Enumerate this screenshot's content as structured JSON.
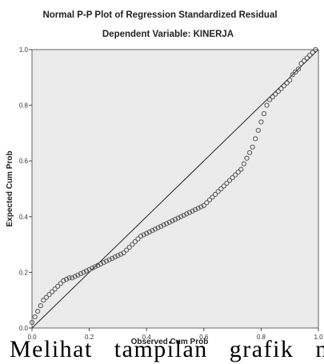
{
  "chart_data": {
    "type": "scatter",
    "title": "Normal P-P Plot of Regression Standardized Residual",
    "subtitle": "Dependent Variable: KINERJA",
    "xlabel": "Observed Cum Prob",
    "ylabel": "Expected Cum Prob",
    "xlim": [
      0,
      1
    ],
    "ylim": [
      0,
      1
    ],
    "xticks": [
      "0.0",
      "0.2",
      "0.4",
      "0.6",
      "0.8",
      "1.0"
    ],
    "yticks": [
      "0.0",
      "0.2",
      "0.4",
      "0.6",
      "0.8",
      "1.0"
    ],
    "reference_line": [
      [
        0,
        0
      ],
      [
        1,
        1
      ]
    ],
    "grid": false,
    "plot_background": "#ebebeb",
    "point_color": "#555555",
    "points": [
      [
        0.0,
        0.02
      ],
      [
        0.01,
        0.04
      ],
      [
        0.02,
        0.06
      ],
      [
        0.03,
        0.08
      ],
      [
        0.04,
        0.1
      ],
      [
        0.05,
        0.11
      ],
      [
        0.06,
        0.12
      ],
      [
        0.07,
        0.13
      ],
      [
        0.08,
        0.14
      ],
      [
        0.09,
        0.15
      ],
      [
        0.1,
        0.16
      ],
      [
        0.11,
        0.17
      ],
      [
        0.12,
        0.175
      ],
      [
        0.13,
        0.18
      ],
      [
        0.14,
        0.18
      ],
      [
        0.15,
        0.185
      ],
      [
        0.16,
        0.19
      ],
      [
        0.17,
        0.195
      ],
      [
        0.18,
        0.2
      ],
      [
        0.19,
        0.205
      ],
      [
        0.2,
        0.21
      ],
      [
        0.21,
        0.215
      ],
      [
        0.22,
        0.22
      ],
      [
        0.23,
        0.225
      ],
      [
        0.24,
        0.23
      ],
      [
        0.25,
        0.235
      ],
      [
        0.26,
        0.24
      ],
      [
        0.27,
        0.245
      ],
      [
        0.28,
        0.25
      ],
      [
        0.29,
        0.255
      ],
      [
        0.3,
        0.26
      ],
      [
        0.31,
        0.265
      ],
      [
        0.32,
        0.27
      ],
      [
        0.33,
        0.28
      ],
      [
        0.34,
        0.29
      ],
      [
        0.35,
        0.3
      ],
      [
        0.36,
        0.31
      ],
      [
        0.37,
        0.32
      ],
      [
        0.38,
        0.33
      ],
      [
        0.39,
        0.335
      ],
      [
        0.4,
        0.34
      ],
      [
        0.41,
        0.345
      ],
      [
        0.42,
        0.35
      ],
      [
        0.43,
        0.355
      ],
      [
        0.44,
        0.36
      ],
      [
        0.45,
        0.365
      ],
      [
        0.46,
        0.37
      ],
      [
        0.47,
        0.375
      ],
      [
        0.48,
        0.38
      ],
      [
        0.49,
        0.385
      ],
      [
        0.5,
        0.39
      ],
      [
        0.51,
        0.395
      ],
      [
        0.52,
        0.4
      ],
      [
        0.53,
        0.405
      ],
      [
        0.54,
        0.41
      ],
      [
        0.55,
        0.415
      ],
      [
        0.56,
        0.42
      ],
      [
        0.57,
        0.425
      ],
      [
        0.58,
        0.43
      ],
      [
        0.59,
        0.435
      ],
      [
        0.6,
        0.44
      ],
      [
        0.61,
        0.45
      ],
      [
        0.62,
        0.46
      ],
      [
        0.63,
        0.47
      ],
      [
        0.64,
        0.48
      ],
      [
        0.65,
        0.49
      ],
      [
        0.66,
        0.5
      ],
      [
        0.67,
        0.51
      ],
      [
        0.68,
        0.52
      ],
      [
        0.69,
        0.53
      ],
      [
        0.7,
        0.54
      ],
      [
        0.71,
        0.55
      ],
      [
        0.72,
        0.56
      ],
      [
        0.73,
        0.57
      ],
      [
        0.74,
        0.59
      ],
      [
        0.75,
        0.61
      ],
      [
        0.76,
        0.63
      ],
      [
        0.77,
        0.65
      ],
      [
        0.78,
        0.68
      ],
      [
        0.79,
        0.71
      ],
      [
        0.8,
        0.74
      ],
      [
        0.81,
        0.77
      ],
      [
        0.82,
        0.8
      ],
      [
        0.83,
        0.82
      ],
      [
        0.84,
        0.83
      ],
      [
        0.85,
        0.84
      ],
      [
        0.86,
        0.85
      ],
      [
        0.87,
        0.86
      ],
      [
        0.88,
        0.87
      ],
      [
        0.89,
        0.88
      ],
      [
        0.9,
        0.89
      ],
      [
        0.91,
        0.91
      ],
      [
        0.92,
        0.92
      ],
      [
        0.93,
        0.93
      ],
      [
        0.94,
        0.95
      ],
      [
        0.95,
        0.96
      ],
      [
        0.96,
        0.97
      ],
      [
        0.97,
        0.98
      ],
      [
        0.98,
        0.99
      ],
      [
        0.99,
        1.0
      ]
    ]
  },
  "caption": {
    "text": "Melihat tampilan grafik norr"
  }
}
